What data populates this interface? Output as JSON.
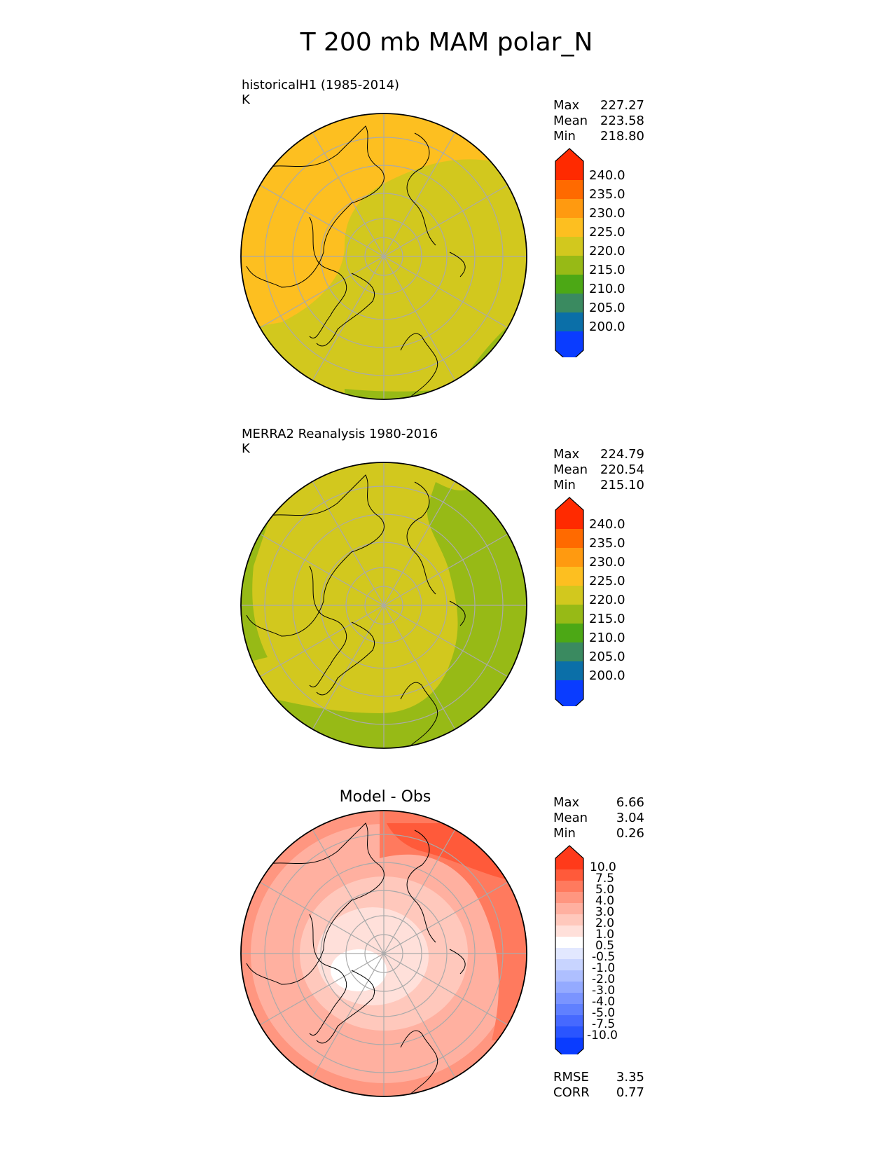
{
  "figure": {
    "title": "T 200 mb MAM polar_N"
  },
  "panels": [
    {
      "id": "model",
      "title": "historicalH1 (1985-2014)",
      "units": "K",
      "stats": [
        {
          "label": "Max",
          "value": "227.27"
        },
        {
          "label": "Mean",
          "value": "223.58"
        },
        {
          "label": "Min",
          "value": "218.80"
        }
      ]
    },
    {
      "id": "obs",
      "title": "MERRA2 Reanalysis 1980-2016",
      "units": "K",
      "stats": [
        {
          "label": "Max",
          "value": "224.79"
        },
        {
          "label": "Mean",
          "value": "220.54"
        },
        {
          "label": "Min",
          "value": "215.10"
        }
      ]
    },
    {
      "id": "diff",
      "title": "Model - Obs",
      "stats": [
        {
          "label": "Max",
          "value": "6.66"
        },
        {
          "label": "Mean",
          "value": "3.04"
        },
        {
          "label": "Min",
          "value": "0.26"
        }
      ],
      "metrics": [
        {
          "label": "RMSE",
          "value": "3.35"
        },
        {
          "label": "CORR",
          "value": "0.77"
        }
      ]
    }
  ],
  "colorbars": {
    "abs": {
      "labels": [
        "240.0",
        "235.0",
        "230.0",
        "225.0",
        "220.0",
        "215.0",
        "210.0",
        "205.0",
        "200.0"
      ],
      "colors": [
        "#ff2a00",
        "#ff6a00",
        "#ff9a10",
        "#fdbf20",
        "#d2c81e",
        "#97ba16",
        "#4ca815",
        "#3a8a60",
        "#0b6fa8",
        "#0a3cff"
      ]
    },
    "diff": {
      "labels": [
        "10.0",
        "7.5",
        "5.0",
        "4.0",
        "3.0",
        "2.0",
        "1.0",
        "0.5",
        "-0.5",
        "-1.0",
        "-2.0",
        "-3.0",
        "-4.0",
        "-5.0",
        "-7.5",
        "-10.0"
      ],
      "colors": [
        "#ff3a1a",
        "#ff5a3a",
        "#ff7a5e",
        "#ff9680",
        "#ffb0a0",
        "#ffc8bc",
        "#ffe0da",
        "#ffffff",
        "#e2e8ff",
        "#c8d4ff",
        "#aebfff",
        "#94aaff",
        "#7a94ff",
        "#6080ff",
        "#4669ff",
        "#2a55ff",
        "#0a3cff"
      ]
    }
  },
  "map_colors": {
    "warm_orange": "#fdbf20",
    "yellow_green": "#d2c81e",
    "green": "#97ba16",
    "coastline": "#000000",
    "grid": "#aaaaaa"
  }
}
